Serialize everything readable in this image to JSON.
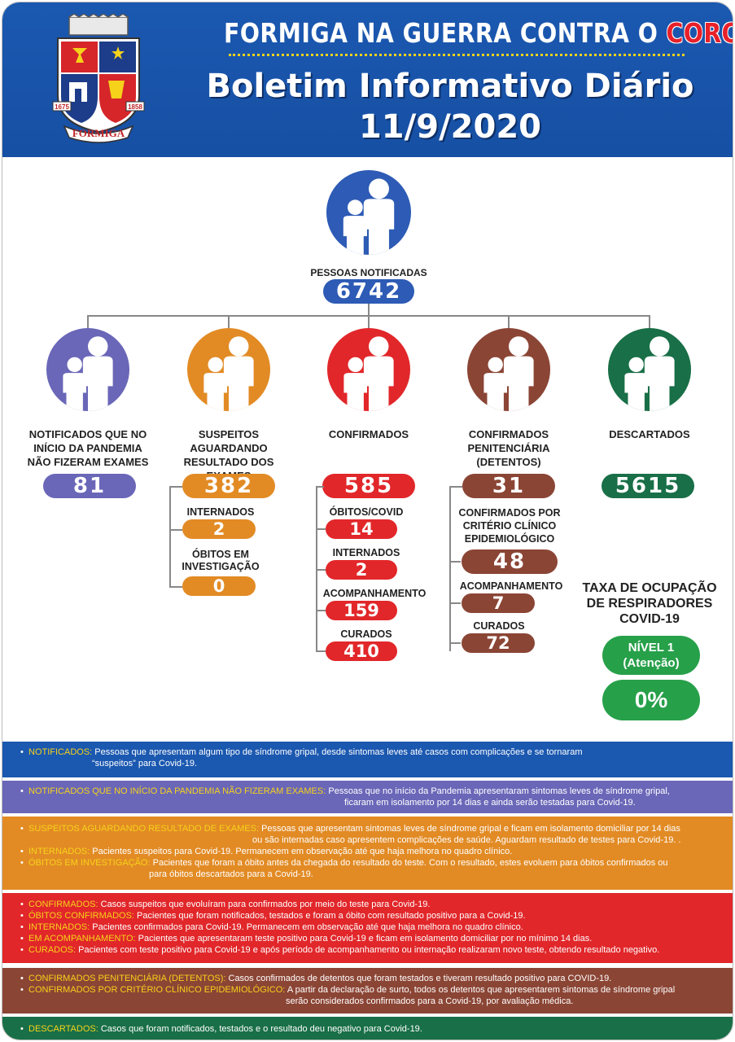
{
  "header": {
    "line1_prefix": "FORMIGA NA GUERRA CONTRA O ",
    "line1_highlight": "CORONAVÍRUS",
    "title": "Boletim Informativo Diário",
    "date": "11/9/2020",
    "crest_years": [
      "1675",
      "1858"
    ],
    "crest_banner": "FORMIGA"
  },
  "colors": {
    "header_blue": "#1b58b0",
    "notificados": "#2d5bb5",
    "sem_exames": "#6a67b8",
    "suspeitos": "#e28b25",
    "confirmados": "#e1272a",
    "penitenciaria": "#8b4535",
    "descartados": "#196f47",
    "respiradores": "#27a04a"
  },
  "top": {
    "label": "PESSOAS NOTIFICADAS",
    "value": "6742"
  },
  "categories": {
    "sem_exames": {
      "label": "NOTIFICADOS QUE NO INÍCIO DA PANDEMIA NÃO FIZERAM EXAMES",
      "value": "81"
    },
    "suspeitos": {
      "label": "SUSPEITOS AGUARDANDO RESULTADO DOS EXAMES",
      "value": "382",
      "internados_label": "INTERNADOS",
      "internados_value": "2",
      "obitos_label": "ÓBITOS EM INVESTIGAÇÃO",
      "obitos_value": "0"
    },
    "confirmados": {
      "label": "CONFIRMADOS",
      "value": "585",
      "obitos_label": "ÓBITOS/COVID",
      "obitos_value": "14",
      "internados_label": "INTERNADOS",
      "internados_value": "2",
      "acomp_label": "ACOMPANHAMENTO",
      "acomp_value": "159",
      "curados_label": "CURADOS",
      "curados_value": "410"
    },
    "penitenciaria": {
      "label": "CONFIRMADOS PENITENCIÁRIA (DETENTOS)",
      "value": "31",
      "criterio_label": "CONFIRMADOS POR CRITÉRIO CLÍNICO EPIDEMIOLÓGICO",
      "criterio_value": "48",
      "acomp_label": "ACOMPANHAMENTO",
      "acomp_value": "7",
      "curados_label": "CURADOS",
      "curados_value": "72"
    },
    "descartados": {
      "label": "DESCARTADOS",
      "value": "5615"
    }
  },
  "respiradores": {
    "title": "TAXA DE OCUPAÇÃO DE RESPIRADORES COVID-19",
    "nivel": "NÍVEL 1",
    "nivel_sub": "(Atenção)",
    "percent": "0%"
  },
  "legend": {
    "notificados": {
      "key": "NOTIFICADOS:",
      "text": "Pessoas que apresentam algum tipo de síndrome gripal, desde sintomas leves até casos com complicações e se tornaram",
      "cont": "“suspeitos” para Covid-19."
    },
    "sem_exames": {
      "key": "NOTIFICADOS QUE NO INÍCIO DA PANDEMIA NÃO FIZERAM EXAMES:",
      "text": "Pessoas que no início da Pandemia apresentaram sintomas leves de síndrome gripal,",
      "cont": "ficaram em isolamento por 14 dias e ainda serão testadas para Covid-19."
    },
    "suspeitos": [
      {
        "key": "SUSPEITOS AGUARDANDO RESULTADO DE EXAMES:",
        "text": "Pessoas que apresentam sintomas leves de síndrome gripal e ficam em isolamento domiciliar por 14 dias",
        "cont": "ou são internadas caso apresentem complicações de saúde. Aguardam resultado de testes para Covid-19. ."
      },
      {
        "key": "INTERNADOS:",
        "text": "Pacientes suspeitos para Covid-19. Permanecem em observação até que haja melhora no quadro clínico.",
        "cont": ""
      },
      {
        "key": "ÓBITOS EM INVESTIGAÇÃO:",
        "text": "Pacientes que foram a óbito antes da chegada do resultado do teste. Com o resultado, estes evoluem para óbitos confirmados ou",
        "cont": "para óbitos descartados para a Covid-19."
      }
    ],
    "confirmados": [
      {
        "key": "CONFIRMADOS:",
        "text": "Casos suspeitos que evoluíram para confirmados por meio do teste para Covid-19."
      },
      {
        "key": "ÓBITOS CONFIRMADOS:",
        "text": "Pacientes que foram notificados, testados e foram a óbito com resultado positivo para a Covid-19."
      },
      {
        "key": "INTERNADOS:",
        "text": "Pacientes confirmados para Covid-19. Permanecem em observação até que haja melhora no quadro clínico."
      },
      {
        "key": "EM ACOMPANHAMENTO:",
        "text": "Pacientes que apresentaram teste positivo para Covid-19 e ficam em isolamento domiciliar por no mínimo 14 dias."
      },
      {
        "key": "CURADOS:",
        "text": "Pacientes com teste positivo para Covid-19 e após período de acompanhamento ou internação realizaram novo teste, obtendo resultado negativo."
      }
    ],
    "penitenciaria": [
      {
        "key": "CONFIRMADOS PENITENCIÁRIA (DETENTOS):",
        "text": "Casos confirmados de detentos que foram testados e tiveram resultado positivo para COVID-19.",
        "cont": ""
      },
      {
        "key": "CONFIRMADOS POR CRITÉRIO CLÍNICO EPIDEMIOLÓGICO:",
        "text": "A partir da declaração de surto, todos os detentos que apresentarem sintomas de síndrome gripal",
        "cont": "serão considerados confirmados para a Covid-19, por avaliação médica."
      }
    ],
    "descartados": {
      "key": "DESCARTADOS:",
      "text": "Casos que foram notificados, testados e o resultado deu negativo para Covid-19."
    }
  }
}
